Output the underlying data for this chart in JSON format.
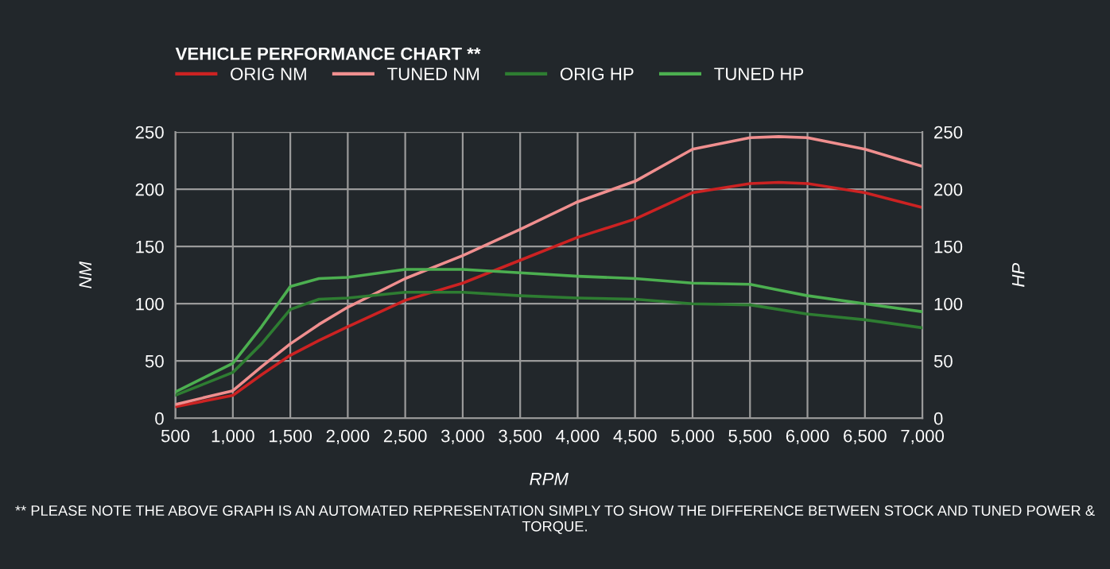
{
  "chart_data": {
    "type": "line",
    "title": "VEHICLE PERFORMANCE CHART **",
    "xlabel": "RPM",
    "ylabel": "NM",
    "y2label": "HP",
    "annotations": [
      "** PLEASE NOTE THE ABOVE GRAPH IS AN AUTOMATED REPRESENTATION SIMPLY TO SHOW THE DIFFERENCE BETWEEN STOCK AND TUNED POWER & TORQUE."
    ],
    "x": [
      500,
      1000,
      1250,
      1500,
      1750,
      2000,
      2500,
      3000,
      3500,
      4000,
      4500,
      5000,
      5500,
      5750,
      6000,
      6500,
      7000
    ],
    "series": [
      {
        "name": "ORIG NM",
        "color": "#cc2222",
        "values": [
          10,
          20,
          38,
          55,
          68,
          80,
          103,
          118,
          138,
          158,
          174,
          197,
          205,
          206,
          205,
          197,
          184
        ]
      },
      {
        "name": "TUNED NM",
        "color": "#f08f8f",
        "values": [
          12,
          24,
          45,
          65,
          82,
          97,
          122,
          142,
          165,
          189,
          207,
          235,
          245,
          246,
          245,
          235,
          220
        ]
      },
      {
        "name": "ORIG HP",
        "color": "#2e7d32",
        "axis": "y2",
        "values": [
          20,
          40,
          65,
          95,
          104,
          105,
          110,
          110,
          107,
          105,
          104,
          100,
          99,
          95,
          91,
          86,
          79
        ]
      },
      {
        "name": "TUNED HP",
        "color": "#4caf50",
        "axis": "y2",
        "values": [
          23,
          48,
          80,
          115,
          122,
          123,
          130,
          130,
          127,
          124,
          122,
          118,
          117,
          112,
          107,
          100,
          93
        ]
      }
    ],
    "xlim": [
      500,
      7000
    ],
    "xticks": [
      {
        "value": 500,
        "label": "500"
      },
      {
        "value": 1000,
        "label": "1,000"
      },
      {
        "value": 1500,
        "label": "1,500"
      },
      {
        "value": 2000,
        "label": "2,000"
      },
      {
        "value": 2500,
        "label": "2,500"
      },
      {
        "value": 3000,
        "label": "3,000"
      },
      {
        "value": 3500,
        "label": "3,500"
      },
      {
        "value": 4000,
        "label": "4,000"
      },
      {
        "value": 4500,
        "label": "4,500"
      },
      {
        "value": 5000,
        "label": "5,000"
      },
      {
        "value": 5500,
        "label": "5,500"
      },
      {
        "value": 6000,
        "label": "6,000"
      },
      {
        "value": 6500,
        "label": "6,500"
      },
      {
        "value": 7000,
        "label": "7,000"
      }
    ],
    "ylim": [
      0,
      250
    ],
    "yticks": [
      0,
      50,
      100,
      150,
      200,
      250
    ],
    "y2lim": [
      0,
      250
    ],
    "y2ticks": [
      0,
      50,
      100,
      150,
      200,
      250
    ],
    "grid": true,
    "legend": "top left",
    "marker": "none",
    "line_style": "solid"
  }
}
